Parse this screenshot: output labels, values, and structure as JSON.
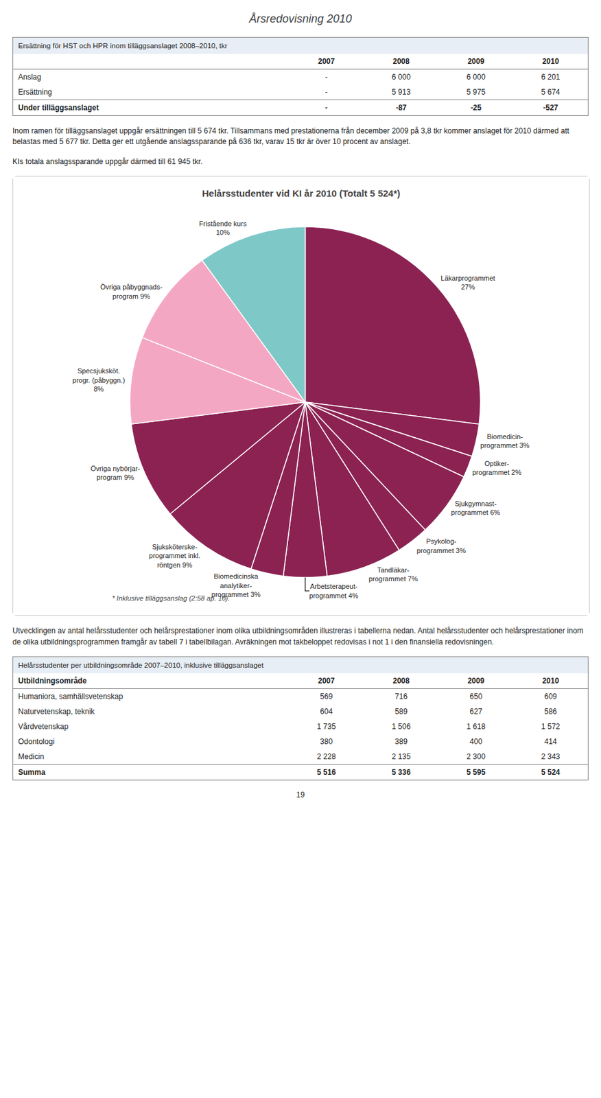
{
  "page_title": "Årsredovisning 2010",
  "page_number": "19",
  "tables": [
    {
      "title": "Ersättning för HST och HPR inom tilläggsanslaget 2008–2010, tkr",
      "columns": [
        "2007",
        "2008",
        "2009",
        "2010"
      ],
      "rows": [
        [
          "Anslag",
          "-",
          "6 000",
          "6 000",
          "6 201"
        ],
        [
          "Ersättning",
          "-",
          "5 913",
          "5 975",
          "5 674"
        ]
      ],
      "footer_row": [
        "Under tilläggsanslaget",
        "-",
        "-87",
        "-25",
        "-527"
      ]
    },
    {
      "title": "Helårsstudenter per utbildningsområde 2007–2010, inklusive tilläggsanslaget",
      "columns": [
        "Utbildningsområde",
        "2007",
        "2008",
        "2009",
        "2010"
      ],
      "rows": [
        [
          "Humaniora, samhällsvetenskap",
          "569",
          "716",
          "650",
          "609"
        ],
        [
          "Naturvetenskap, teknik",
          "604",
          "589",
          "627",
          "586"
        ],
        [
          "Vårdvetenskap",
          "1 735",
          "1 506",
          "1 618",
          "1 572"
        ],
        [
          "Odontologi",
          "380",
          "389",
          "400",
          "414"
        ],
        [
          "Medicin",
          "2 228",
          "2 135",
          "2 300",
          "2 343"
        ]
      ],
      "footer_row": [
        "Summa",
        "5 516",
        "5 336",
        "5 595",
        "5 524"
      ]
    }
  ],
  "paragraphs": [
    "Inom ramen för tilläggsanslaget uppgår ersättningen till 5 674 tkr. Tillsammans med prestationerna från december 2009 på 3,8 tkr kommer anslaget för 2010 därmed att belastas med 5 677 tkr. Detta ger ett utgående anslagssparande på 636 tkr, varav 15 tkr är över 10 procent av anslaget.",
    "KIs totala anslagssparande uppgår därmed till 61 945 tkr.",
    "Utvecklingen av antal helårsstudenter och helårsprestationer inom olika utbildningsområden illustreras i tabellerna nedan. Antal helårsstudenter och helårsprestationer inom de olika utbildningsprogrammen framgår av tabell 7 i tabellbilagan. Avräkningen mot takbeloppet redovisas i not 1 i den finansiella redovisningen."
  ],
  "chart_data": {
    "type": "pie",
    "title": "Helårsstudenter vid KI år 2010 (Totalt 5 524*)",
    "categories": [
      "Läkarprogrammet\n27%",
      "Biomedicin-\nprogrammet 3%",
      "Optiker-\nprogrammet 2%",
      "Sjukgymnast-\nprogrammet 6%",
      "Psykolog-\nprogrammet 3%",
      "Tandläkar-\nprogrammet 7%",
      "Arbetsterapeut-\nprogrammet 4%",
      "Biomedicinska\nanalytiker-\nprogrammet 3%",
      "Sjuksköterske-\nprogrammet inkl.\nröntgen 9%",
      "Övriga nybörjar-\nprogram 9%",
      "Specsjuksköt.\nprogr. (påbyggn.)\n8%",
      "Övriga påbyggnads-\nprogram 9%",
      "Fristående kurs\n10%"
    ],
    "values": [
      27,
      3,
      2,
      6,
      3,
      7,
      4,
      3,
      9,
      9,
      8,
      9,
      10
    ],
    "colors": [
      "#8B2252",
      "#8B2252",
      "#8B2252",
      "#8B2252",
      "#8B2252",
      "#8B2252",
      "#8B2252",
      "#8B2252",
      "#8B2252",
      "#8B2252",
      "#f4a7c3",
      "#f4a7c3",
      "#7ec8c8"
    ],
    "data_labels": true,
    "legend": false,
    "annotations": [
      "* Inklusive tilläggsanslag (2:58 ap. 10)."
    ]
  }
}
